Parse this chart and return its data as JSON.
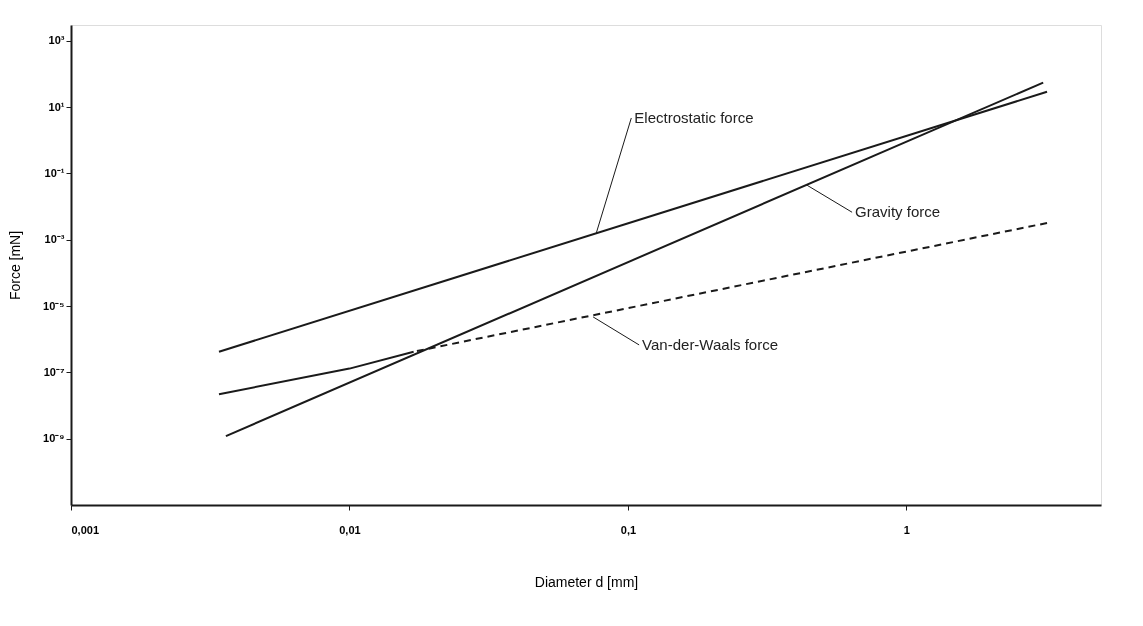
{
  "chart_data": {
    "type": "line",
    "xlabel": "Diameter d [mm]",
    "ylabel": "Force [mN]",
    "log": "xy",
    "marker": "none",
    "xlim": [
      0.001,
      5
    ],
    "ylim": [
      1e-11,
      3000
    ],
    "xticks": [
      {
        "value": 0.001,
        "label": "0,001"
      },
      {
        "value": 0.01,
        "label": "0,01"
      },
      {
        "value": 0.1,
        "label": "0,1"
      },
      {
        "value": 1,
        "label": "1"
      }
    ],
    "yticks": [
      {
        "value": 1e-09,
        "label": "10⁻⁹"
      },
      {
        "value": 1e-07,
        "label": "10⁻⁷"
      },
      {
        "value": 1e-05,
        "label": "10⁻⁵"
      },
      {
        "value": 0.001,
        "label": "10⁻³"
      },
      {
        "value": 0.1,
        "label": "10⁻¹"
      },
      {
        "value": 10,
        "label": "10¹"
      },
      {
        "value": 1000,
        "label": "10³"
      }
    ],
    "series": [
      {
        "color": "#1a1a1a",
        "line_style": "solid",
        "x": [
          0.0034,
          3.2
        ],
        "values": [
          4.2e-07,
          29
        ]
      },
      {
        "color": "#1a1a1a",
        "line_style": "solid",
        "x": [
          0.0036,
          3.1
        ],
        "values": [
          1.2e-09,
          55
        ]
      },
      {
        "color": "#1a1a1a",
        "line_style": "solid",
        "x": [
          0.0034,
          0.01,
          0.017
        ],
        "values": [
          2.2e-08,
          1.3e-07,
          4.2e-07
        ]
      },
      {
        "color": "#1a1a1a",
        "line_style": "dashed",
        "x": [
          0.017,
          3.2
        ],
        "values": [
          4.2e-07,
          0.0032
        ]
      }
    ],
    "annotations": [
      {
        "text": "Electrostatic force",
        "x": 0.077,
        "y": 0.0016
      },
      {
        "text": "Gravity force",
        "x": 0.44,
        "y": 0.044
      },
      {
        "text": "Van-der-Waals force",
        "x": 0.075,
        "y": 4.7e-06
      }
    ]
  }
}
